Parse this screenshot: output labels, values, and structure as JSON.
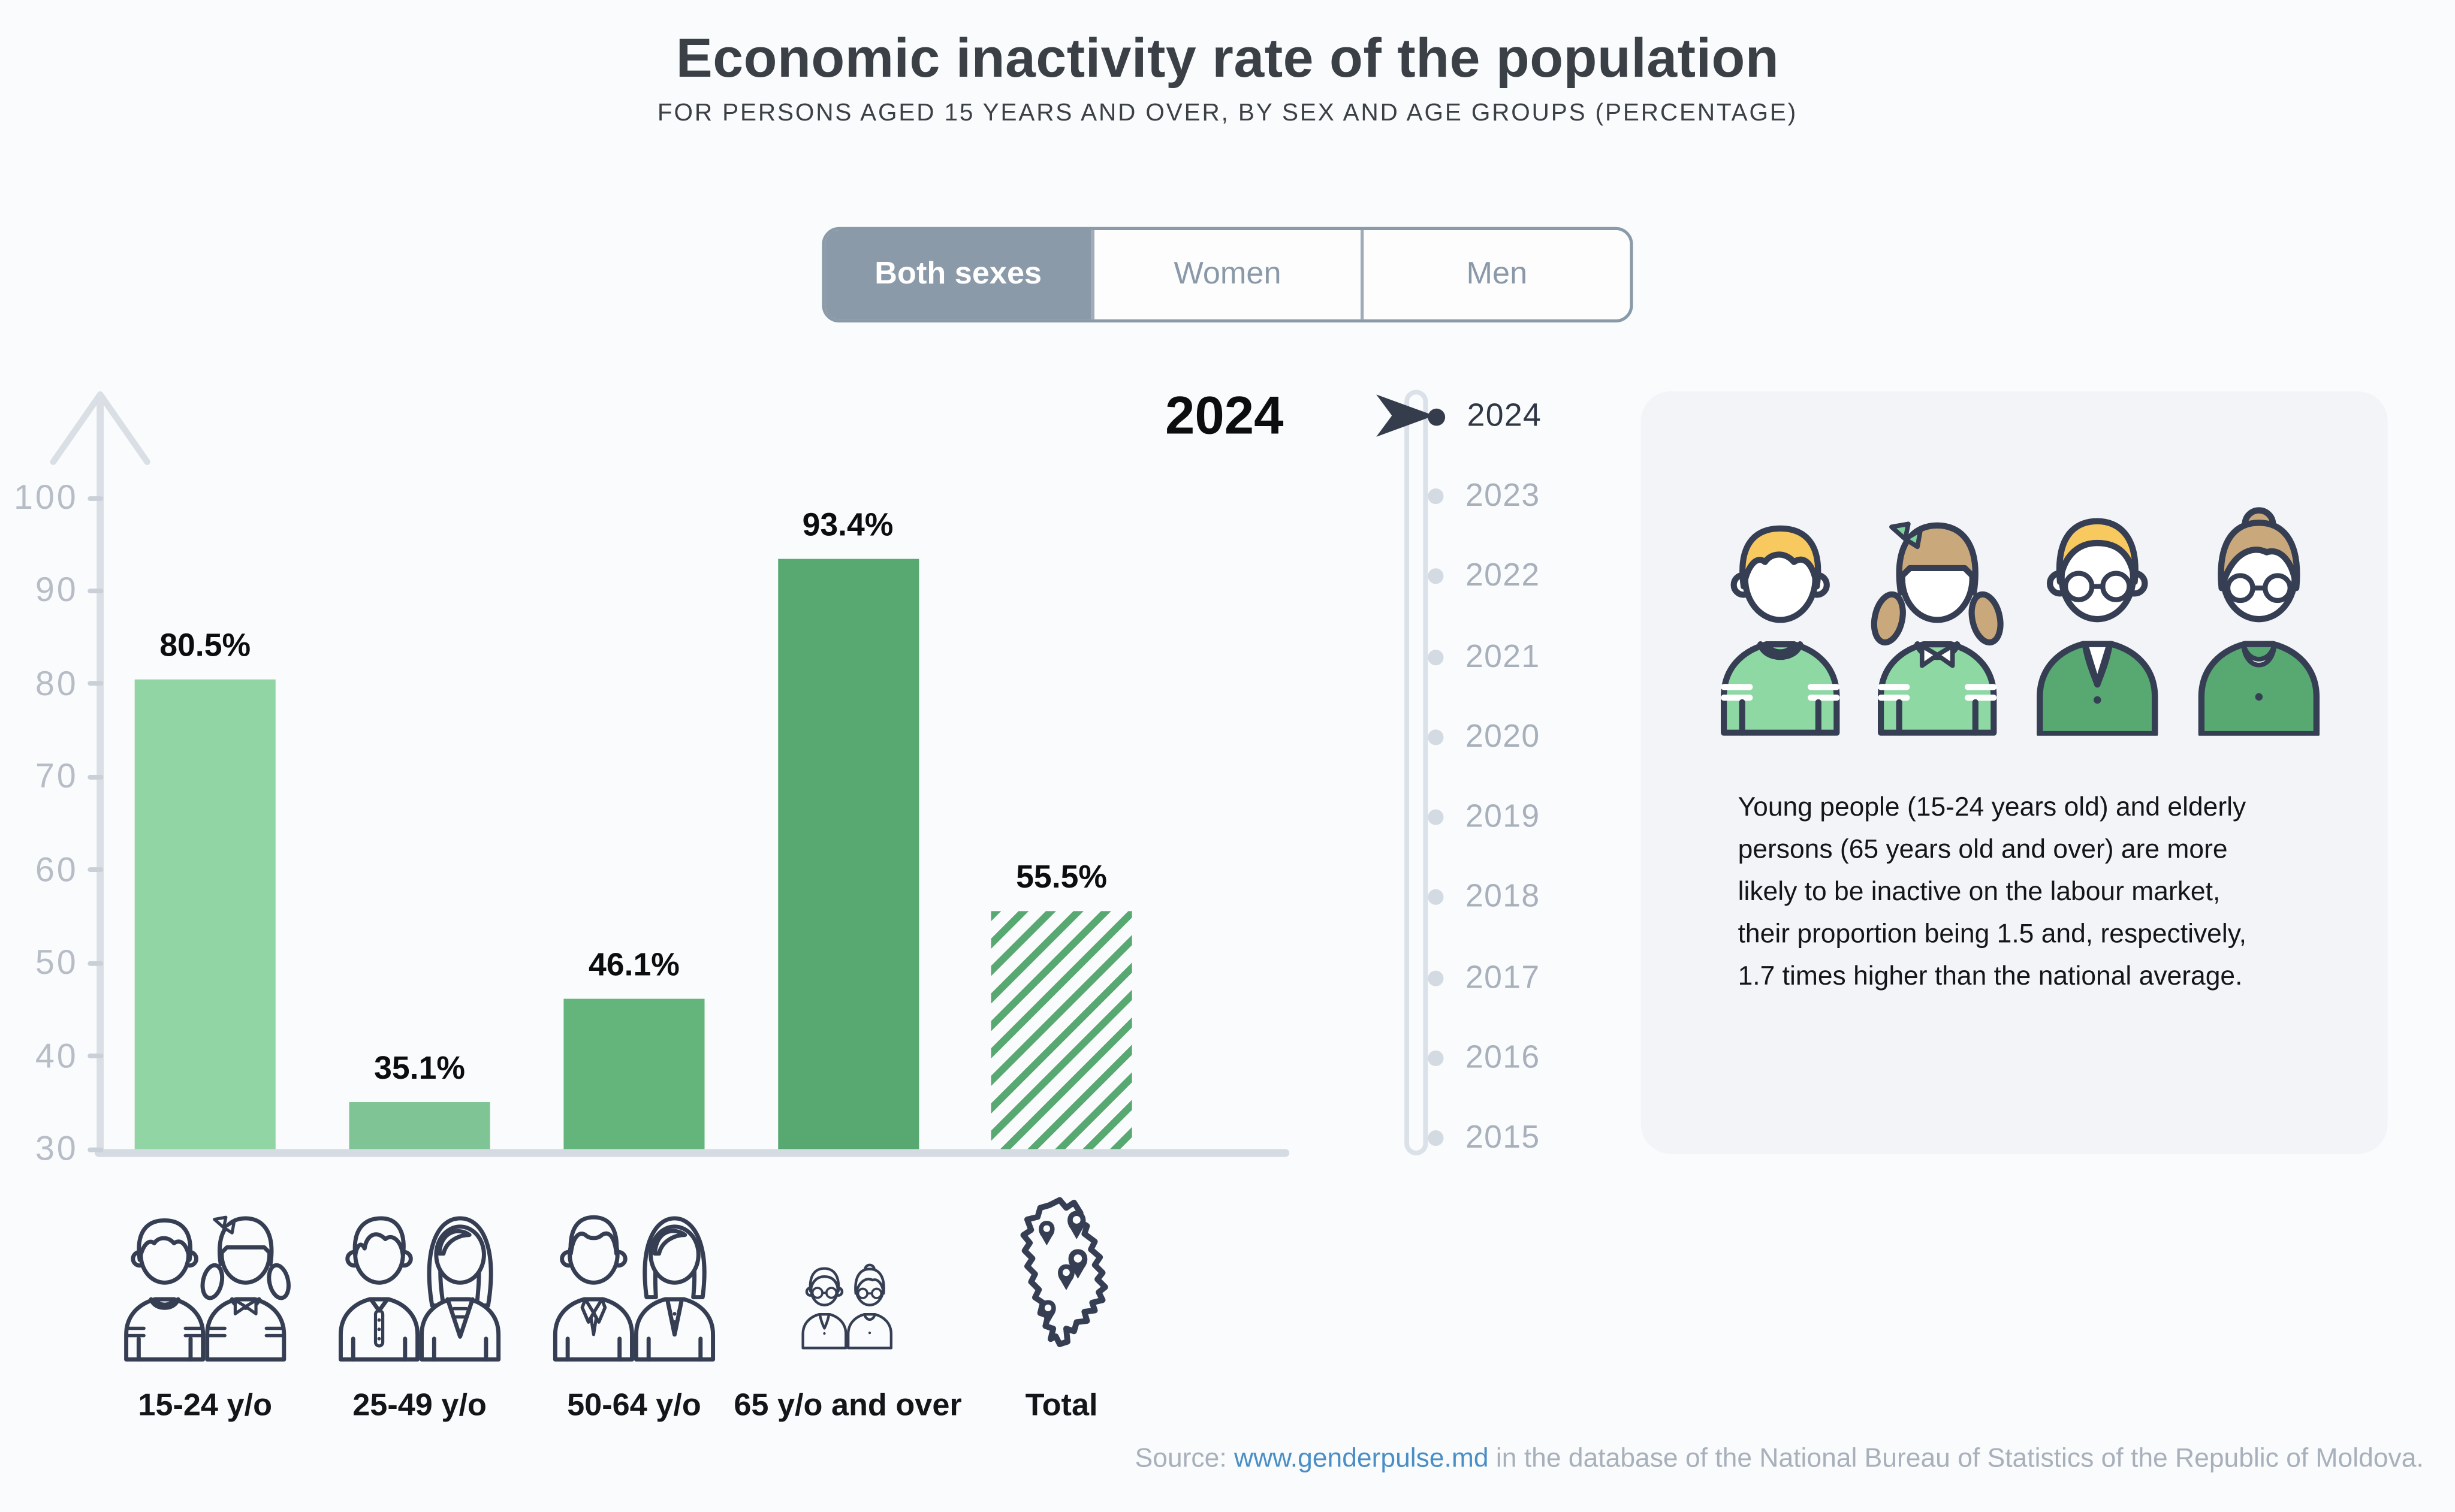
{
  "title": "Economic inactivity rate of the population",
  "subtitle": "FOR PERSONS AGED 15 YEARS AND OVER, BY SEX AND AGE GROUPS (PERCENTAGE)",
  "tabs": [
    {
      "label": "Both sexes",
      "selected": true
    },
    {
      "label": "Women",
      "selected": false
    },
    {
      "label": "Men",
      "selected": false
    }
  ],
  "selected_year_label": "2024",
  "timeline_years": [
    "2024",
    "2023",
    "2022",
    "2021",
    "2020",
    "2019",
    "2018",
    "2017",
    "2016",
    "2015"
  ],
  "chart_data": {
    "type": "bar",
    "title": "Economic inactivity rate of the population",
    "subtitle": "FOR PERSONS AGED 15 YEARS AND OVER, BY SEX AND AGE GROUPS (PERCENTAGE)",
    "year": "2024",
    "categories": [
      "15-24 y/o",
      "25-49 y/o",
      "50-64 y/o",
      "65 y/o and over",
      "Total"
    ],
    "values": [
      80.5,
      35.1,
      46.1,
      93.4,
      55.5
    ],
    "value_labels": [
      "80.5%",
      "35.1%",
      "46.1%",
      "93.4%",
      "55.5%"
    ],
    "yticks": [
      100,
      90,
      80,
      70,
      60,
      50,
      40,
      30
    ],
    "ylim": [
      30,
      105
    ],
    "grid": false,
    "legend_position": "none",
    "bar_colors": [
      "#90d5a3",
      "#7fc494",
      "#63b57c",
      "#57a871",
      "hatch"
    ],
    "hatch_color": "#58a872"
  },
  "category_icon_names": [
    "young-boy-girl-icon",
    "adult-man-woman-icon",
    "mature-man-woman-icon",
    "elderly-couple-icon",
    "moldova-map-icon"
  ],
  "info_box": {
    "lines": [
      "Young people (15-24 years old) and elderly",
      "persons (65 years old and over) are more",
      "likely to be inactive on the labour market,",
      "their proportion being 1.5 and, respectively,",
      "1.7 times higher than the national average."
    ]
  },
  "footer": {
    "prefix": "Source: ",
    "link": "www.genderpulse.md",
    "suffix": " in the database of the National Bureau of Statistics of the Republic of Moldova."
  },
  "colors": {
    "accent_slate": "#8b9aa8",
    "axis_gray": "#d9dfe5",
    "tick_label_gray": "#b6bdc6",
    "timeline_selected": "#353c4c",
    "timeline_unselected": "#a8b0bb",
    "link_blue": "#4a8ec6",
    "icon_navy": "#363e54",
    "green_light": "#8ed8a4",
    "green_dark": "#58a872",
    "hair_yellow": "#f8c95f",
    "hair_tan": "#c9a97b",
    "info_box_bg": "#f2f4f7"
  }
}
